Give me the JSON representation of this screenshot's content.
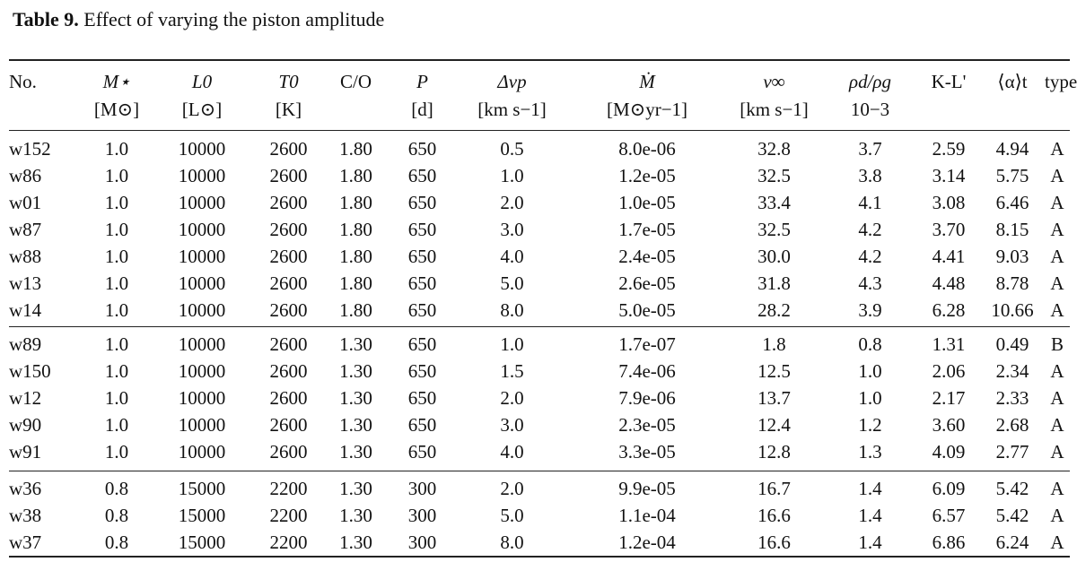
{
  "caption": {
    "label": "Table 9.",
    "text": "Effect of varying the piston amplitude"
  },
  "header": {
    "row1": [
      "No.",
      "M⋆",
      "L0",
      "T0",
      "C/O",
      "P",
      "Δvp",
      "Ṁ",
      "v∞",
      "ρd/ρg",
      "K-L'",
      "⟨α⟩t",
      "type"
    ],
    "row2": [
      "",
      "[M⊙]",
      "[L⊙]",
      "[K]",
      "",
      "[d]",
      "[km s−1]",
      "[M⊙yr−1]",
      "[km s−1]",
      "10−3",
      "",
      "",
      ""
    ]
  },
  "groups": [
    {
      "rows": [
        [
          "w152",
          "1.0",
          "10000",
          "2600",
          "1.80",
          "650",
          "0.5",
          "8.0e-06",
          "32.8",
          "3.7",
          "2.59",
          "4.94",
          "A"
        ],
        [
          "w86",
          "1.0",
          "10000",
          "2600",
          "1.80",
          "650",
          "1.0",
          "1.2e-05",
          "32.5",
          "3.8",
          "3.14",
          "5.75",
          "A"
        ],
        [
          "w01",
          "1.0",
          "10000",
          "2600",
          "1.80",
          "650",
          "2.0",
          "1.0e-05",
          "33.4",
          "4.1",
          "3.08",
          "6.46",
          "A"
        ],
        [
          "w87",
          "1.0",
          "10000",
          "2600",
          "1.80",
          "650",
          "3.0",
          "1.7e-05",
          "32.5",
          "4.2",
          "3.70",
          "8.15",
          "A"
        ],
        [
          "w88",
          "1.0",
          "10000",
          "2600",
          "1.80",
          "650",
          "4.0",
          "2.4e-05",
          "30.0",
          "4.2",
          "4.41",
          "9.03",
          "A"
        ],
        [
          "w13",
          "1.0",
          "10000",
          "2600",
          "1.80",
          "650",
          "5.0",
          "2.6e-05",
          "31.8",
          "4.3",
          "4.48",
          "8.78",
          "A"
        ],
        [
          "w14",
          "1.0",
          "10000",
          "2600",
          "1.80",
          "650",
          "8.0",
          "5.0e-05",
          "28.2",
          "3.9",
          "6.28",
          "10.66",
          "A"
        ]
      ]
    },
    {
      "rows": [
        [
          "w89",
          "1.0",
          "10000",
          "2600",
          "1.30",
          "650",
          "1.0",
          "1.7e-07",
          "1.8",
          "0.8",
          "1.31",
          "0.49",
          "B"
        ],
        [
          "w150",
          "1.0",
          "10000",
          "2600",
          "1.30",
          "650",
          "1.5",
          "7.4e-06",
          "12.5",
          "1.0",
          "2.06",
          "2.34",
          "A"
        ],
        [
          "w12",
          "1.0",
          "10000",
          "2600",
          "1.30",
          "650",
          "2.0",
          "7.9e-06",
          "13.7",
          "1.0",
          "2.17",
          "2.33",
          "A"
        ],
        [
          "w90",
          "1.0",
          "10000",
          "2600",
          "1.30",
          "650",
          "3.0",
          "2.3e-05",
          "12.4",
          "1.2",
          "3.60",
          "2.68",
          "A"
        ],
        [
          "w91",
          "1.0",
          "10000",
          "2600",
          "1.30",
          "650",
          "4.0",
          "3.3e-05",
          "12.8",
          "1.3",
          "4.09",
          "2.77",
          "A"
        ]
      ]
    },
    {
      "rows": [
        [
          "w36",
          "0.8",
          "15000",
          "2200",
          "1.30",
          "300",
          "2.0",
          "9.9e-05",
          "16.7",
          "1.4",
          "6.09",
          "5.42",
          "A"
        ],
        [
          "w38",
          "0.8",
          "15000",
          "2200",
          "1.30",
          "300",
          "5.0",
          "1.1e-04",
          "16.6",
          "1.4",
          "6.57",
          "5.42",
          "A"
        ],
        [
          "w37",
          "0.8",
          "15000",
          "2200",
          "1.30",
          "300",
          "8.0",
          "1.2e-04",
          "16.6",
          "1.4",
          "6.86",
          "6.24",
          "A"
        ]
      ]
    }
  ]
}
